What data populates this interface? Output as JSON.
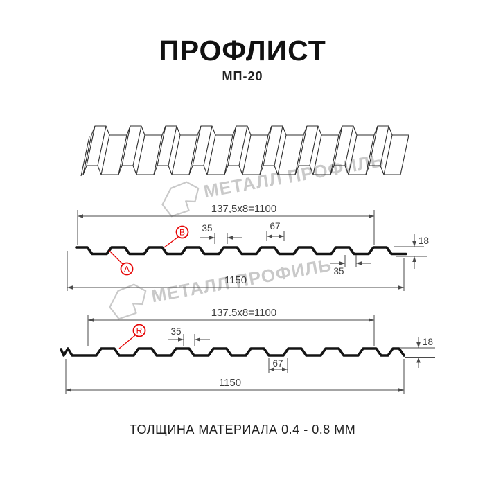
{
  "title": "ПРОФЛИСТ",
  "subtitle": "МП-20",
  "footer": "ТОЛЩИНА МАТЕРИАЛА 0.4 - 0.8 ММ",
  "watermark": {
    "brand": "МЕТАЛЛ ПРОФИЛЬ"
  },
  "colors": {
    "accent_red": "#e60505",
    "drawing_line": "#141414",
    "dimension_line": "#4a4a4a",
    "watermark_gray": "#c9c9c9"
  },
  "section_top": {
    "width_formula": "137,5x8=1100",
    "total_width": "1150",
    "rib_top_width": "35",
    "valley_width": "67",
    "profile_height": "18",
    "rib_bottom_width": "35",
    "point_labels": {
      "a": "A",
      "b": "B"
    }
  },
  "section_bottom": {
    "width_formula": "137.5x8=1100",
    "total_width": "1150",
    "rib_top_width": "35",
    "valley_width": "67",
    "profile_height": "18",
    "point_labels": {
      "r": "R"
    }
  }
}
